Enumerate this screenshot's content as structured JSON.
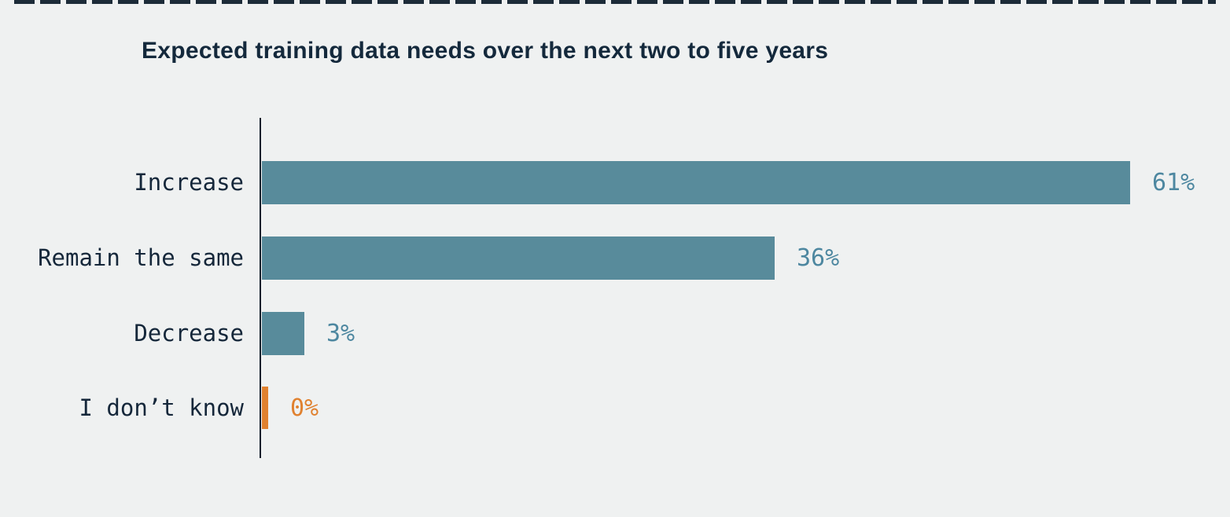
{
  "page": {
    "background_color": "#eff1f1",
    "top_border_color": "#1c2b38"
  },
  "chart_data": {
    "type": "bar",
    "orientation": "horizontal",
    "title": "Expected training data needs over the next two to five years",
    "categories": [
      "Increase",
      "Remain the same",
      "Decrease",
      "I don’t know"
    ],
    "values": [
      61,
      36,
      3,
      0
    ],
    "value_labels": [
      "61%",
      "36%",
      "3%",
      "0%"
    ],
    "xlabel": "",
    "ylabel": "",
    "xlim": [
      0,
      65
    ],
    "grid": "off",
    "legend": "none",
    "bar_color": "#588b9b",
    "zero_bar_color": "#e0812f",
    "value_label_color": "#4d87a0",
    "zero_value_label_color": "#e0812f",
    "title_color": "#14293c",
    "category_label_color": "#15273a",
    "axis_color": "#131f2b"
  }
}
